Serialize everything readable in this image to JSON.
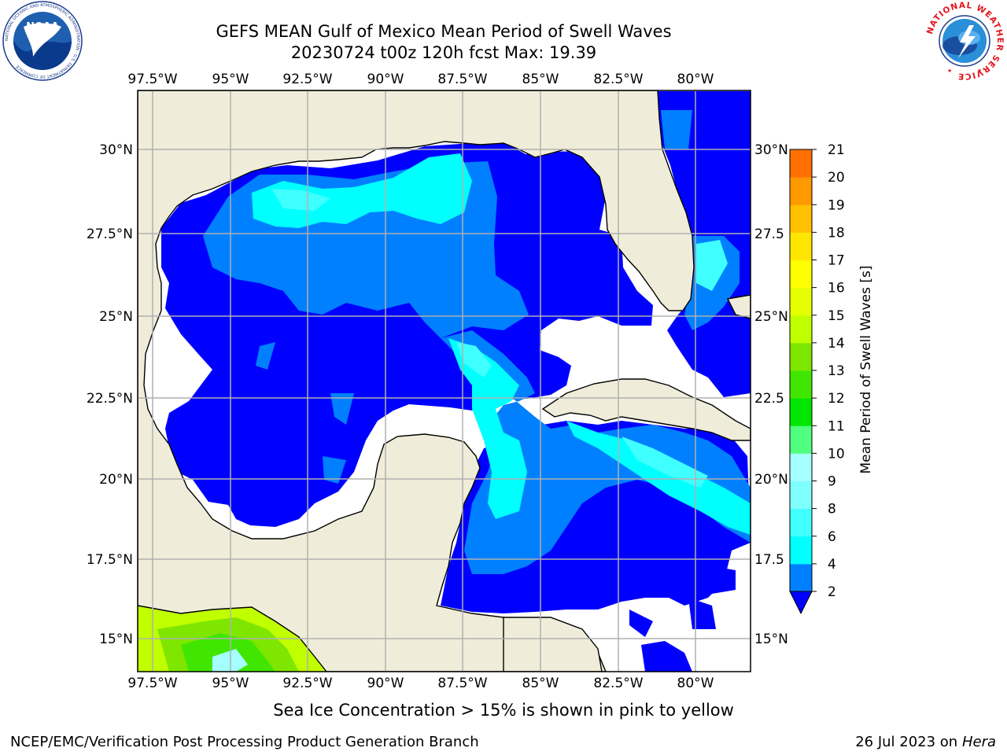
{
  "header": {
    "title_line1": "GEFS MEAN Gulf of Mexico Mean Period of Swell Waves",
    "title_line2": "20230724 t00z 120h fcst   Max: 19.39"
  },
  "logos": {
    "left": {
      "name": "noaa-logo",
      "text": "NOAA",
      "ring_text": "NATIONAL OCEANIC AND ATMOSPHERIC ADMINISTRATION · U.S. DEPARTMENT OF COMMERCE"
    },
    "right": {
      "name": "nws-logo",
      "ring_text": "NATIONAL WEATHER SERVICE"
    }
  },
  "map": {
    "lon_labels": [
      "97.5°W",
      "95°W",
      "92.5°W",
      "90°W",
      "87.5°W",
      "85°W",
      "82.5°W",
      "80°W"
    ],
    "lat_labels_left": [
      "30°N",
      "27.5°N",
      "25°N",
      "22.5°N",
      "20°N",
      "17.5°N",
      "15°N"
    ],
    "lat_labels_right": [
      "30°N",
      "27.5",
      "25°N",
      "22.5",
      "20°N",
      "17.5",
      "15°N"
    ],
    "colors": {
      "land": "#efedda",
      "grid": "#b0b0b0",
      "blue_dark": "#0000ff",
      "blue_mid": "#0080ff",
      "cyan": "#00ffff",
      "cyan_light": "#40ffff"
    }
  },
  "colorbar": {
    "label": "Mean Period of Swell Waves [s]",
    "ticks": [
      "2",
      "4",
      "6",
      "8",
      "9",
      "10",
      "11",
      "12",
      "13",
      "14",
      "15",
      "16",
      "17",
      "18",
      "19",
      "20",
      "21"
    ],
    "colors": [
      "#0080ff",
      "#00ffff",
      "#40ffff",
      "#80ffff",
      "#a6ffff",
      "#50ff80",
      "#00e600",
      "#40e600",
      "#7fe600",
      "#c0ff00",
      "#e6ff00",
      "#ffff00",
      "#ffe600",
      "#ffc000",
      "#ff9900",
      "#ff7000",
      "#ff4000",
      "#ff0000"
    ],
    "under_color": "#0000ff"
  },
  "footer": {
    "note": "Sea Ice Concentration > 15% is shown in pink to yellow",
    "credit": "NCEP/EMC/Verification Post Processing Product Generation Branch",
    "date": "26 Jul 2023 on ",
    "machine": "Hera"
  }
}
